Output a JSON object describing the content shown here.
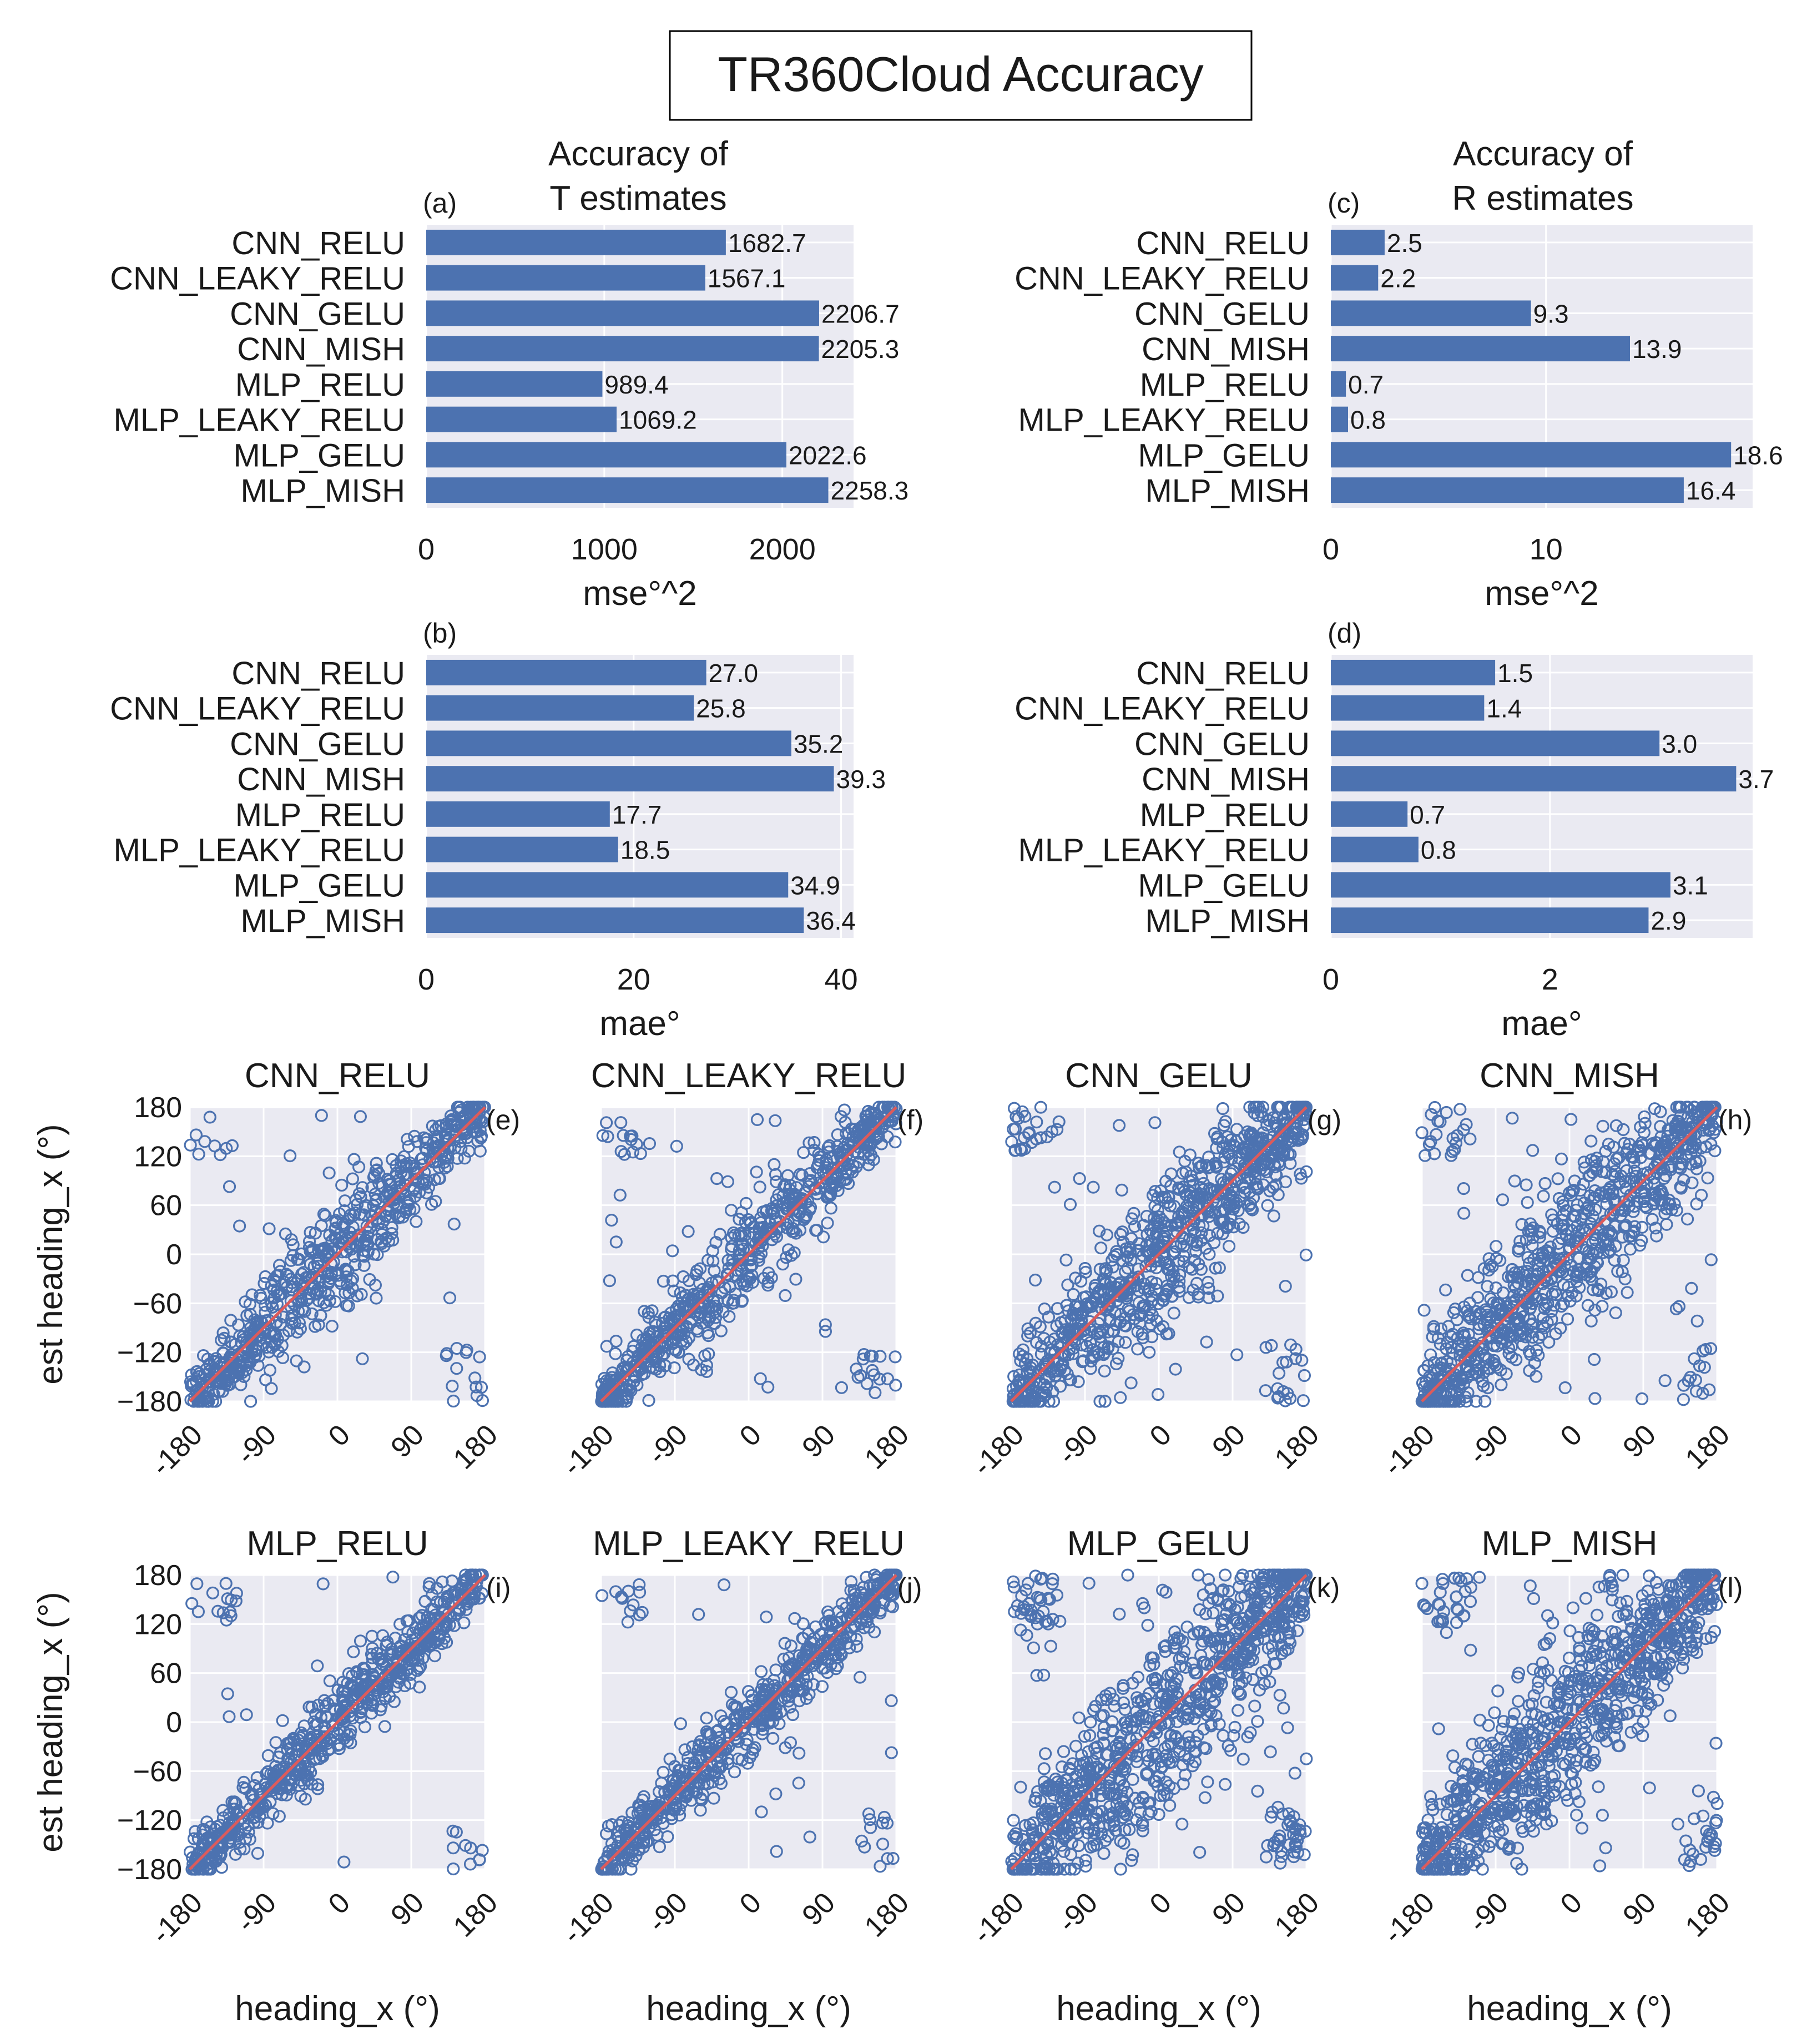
{
  "title": "TR360Cloud Accuracy",
  "colors": {
    "bar": "#4c72b0",
    "panel_bg": "#eaeaf2",
    "grid": "#ffffff",
    "scatter": "#4c72b0",
    "diagonal": "#dd5b5b"
  },
  "column_titles": {
    "t": "Accuracy of\nT estimates",
    "r": "Accuracy of\nR estimates"
  },
  "chart_data": [
    {
      "id": "a",
      "panel_label": "(a)",
      "type": "bar",
      "orientation": "horizontal",
      "categories": [
        "CNN_RELU",
        "CNN_LEAKY_RELU",
        "CNN_GELU",
        "CNN_MISH",
        "MLP_RELU",
        "MLP_LEAKY_RELU",
        "MLP_GELU",
        "MLP_MISH"
      ],
      "values": [
        1682.7,
        1567.1,
        2206.7,
        2205.3,
        989.4,
        1069.2,
        2022.6,
        2258.3
      ],
      "value_labels": [
        "1682.7",
        "1567.1",
        "2206.7",
        "2205.3",
        "989.4",
        "1069.2",
        "2022.6",
        "2258.3"
      ],
      "xlabel": "mse°^2",
      "xticks": [
        0,
        1000,
        2000
      ],
      "xtick_labels": [
        "0",
        "1000",
        "2000"
      ],
      "xlim": [
        0,
        2400
      ],
      "grid": true
    },
    {
      "id": "b",
      "panel_label": "(b)",
      "type": "bar",
      "orientation": "horizontal",
      "categories": [
        "CNN_RELU",
        "CNN_LEAKY_RELU",
        "CNN_GELU",
        "CNN_MISH",
        "MLP_RELU",
        "MLP_LEAKY_RELU",
        "MLP_GELU",
        "MLP_MISH"
      ],
      "values": [
        27.0,
        25.8,
        35.2,
        39.3,
        17.7,
        18.5,
        34.9,
        36.4
      ],
      "value_labels": [
        "27.0",
        "25.8",
        "35.2",
        "39.3",
        "17.7",
        "18.5",
        "34.9",
        "36.4"
      ],
      "xlabel": "mae°",
      "xticks": [
        0,
        20,
        40
      ],
      "xtick_labels": [
        "0",
        "20",
        "40"
      ],
      "xlim": [
        0,
        41.2
      ],
      "grid": true
    },
    {
      "id": "c",
      "panel_label": "(c)",
      "type": "bar",
      "orientation": "horizontal",
      "categories": [
        "CNN_RELU",
        "CNN_LEAKY_RELU",
        "CNN_GELU",
        "CNN_MISH",
        "MLP_RELU",
        "MLP_LEAKY_RELU",
        "MLP_GELU",
        "MLP_MISH"
      ],
      "values": [
        2.5,
        2.2,
        9.3,
        13.9,
        0.7,
        0.8,
        18.6,
        16.4
      ],
      "value_labels": [
        "2.5",
        "2.2",
        "9.3",
        "13.9",
        "0.7",
        "0.8",
        "18.6",
        "16.4"
      ],
      "xlabel": "mse°^2",
      "xticks": [
        0,
        10
      ],
      "xtick_labels": [
        "0",
        "10"
      ],
      "xlim": [
        0,
        19.6
      ],
      "grid": true
    },
    {
      "id": "d",
      "panel_label": "(d)",
      "type": "bar",
      "orientation": "horizontal",
      "categories": [
        "CNN_RELU",
        "CNN_LEAKY_RELU",
        "CNN_GELU",
        "CNN_MISH",
        "MLP_RELU",
        "MLP_LEAKY_RELU",
        "MLP_GELU",
        "MLP_MISH"
      ],
      "values": [
        1.5,
        1.4,
        3.0,
        3.7,
        0.7,
        0.8,
        3.1,
        2.9
      ],
      "value_labels": [
        "1.5",
        "1.4",
        "3.0",
        "3.7",
        "0.7",
        "0.8",
        "3.1",
        "2.9"
      ],
      "xlabel": "mae°",
      "xticks": [
        0,
        2
      ],
      "xtick_labels": [
        "0",
        "2"
      ],
      "xlim": [
        0,
        3.85
      ],
      "grid": true
    },
    {
      "id": "e",
      "panel_label": "(e)",
      "type": "scatter",
      "title": "CNN_RELU",
      "spread": 22,
      "outlier_frac": 0.06,
      "seed": 11,
      "n": 700
    },
    {
      "id": "f",
      "panel_label": "(f)",
      "type": "scatter",
      "title": "CNN_LEAKY_RELU",
      "spread": 20,
      "outlier_frac": 0.06,
      "seed": 23,
      "n": 700
    },
    {
      "id": "g",
      "panel_label": "(g)",
      "type": "scatter",
      "title": "CNN_GELU",
      "spread": 30,
      "outlier_frac": 0.09,
      "seed": 37,
      "n": 900
    },
    {
      "id": "h",
      "panel_label": "(h)",
      "type": "scatter",
      "title": "CNN_MISH",
      "spread": 34,
      "outlier_frac": 0.09,
      "seed": 41,
      "n": 900
    },
    {
      "id": "i",
      "panel_label": "(i)",
      "type": "scatter",
      "title": "MLP_RELU",
      "spread": 16,
      "outlier_frac": 0.05,
      "seed": 53,
      "n": 700
    },
    {
      "id": "j",
      "panel_label": "(j)",
      "type": "scatter",
      "title": "MLP_LEAKY_RELU",
      "spread": 16,
      "outlier_frac": 0.05,
      "seed": 67,
      "n": 700
    },
    {
      "id": "k",
      "panel_label": "(k)",
      "type": "scatter",
      "title": "MLP_GELU",
      "spread": 38,
      "outlier_frac": 0.12,
      "seed": 79,
      "n": 1000
    },
    {
      "id": "l",
      "panel_label": "(l)",
      "type": "scatter",
      "title": "MLP_MISH",
      "spread": 36,
      "outlier_frac": 0.11,
      "seed": 83,
      "n": 1000
    }
  ],
  "scatter_axes": {
    "xlabel": "heading_x (°)",
    "ylabel": "est heading_x (°)",
    "xlim": [
      -180,
      180
    ],
    "ylim": [
      -180,
      180
    ],
    "xticks": [
      -180,
      -90,
      0,
      90,
      180
    ],
    "xtick_labels": [
      "-180",
      "-90",
      "0",
      "90",
      "180"
    ],
    "yticks": [
      -180,
      -120,
      -60,
      0,
      60,
      120,
      180
    ],
    "ytick_labels": [
      "−180",
      "−120",
      "−60",
      "0",
      "60",
      "120",
      "180"
    ]
  }
}
